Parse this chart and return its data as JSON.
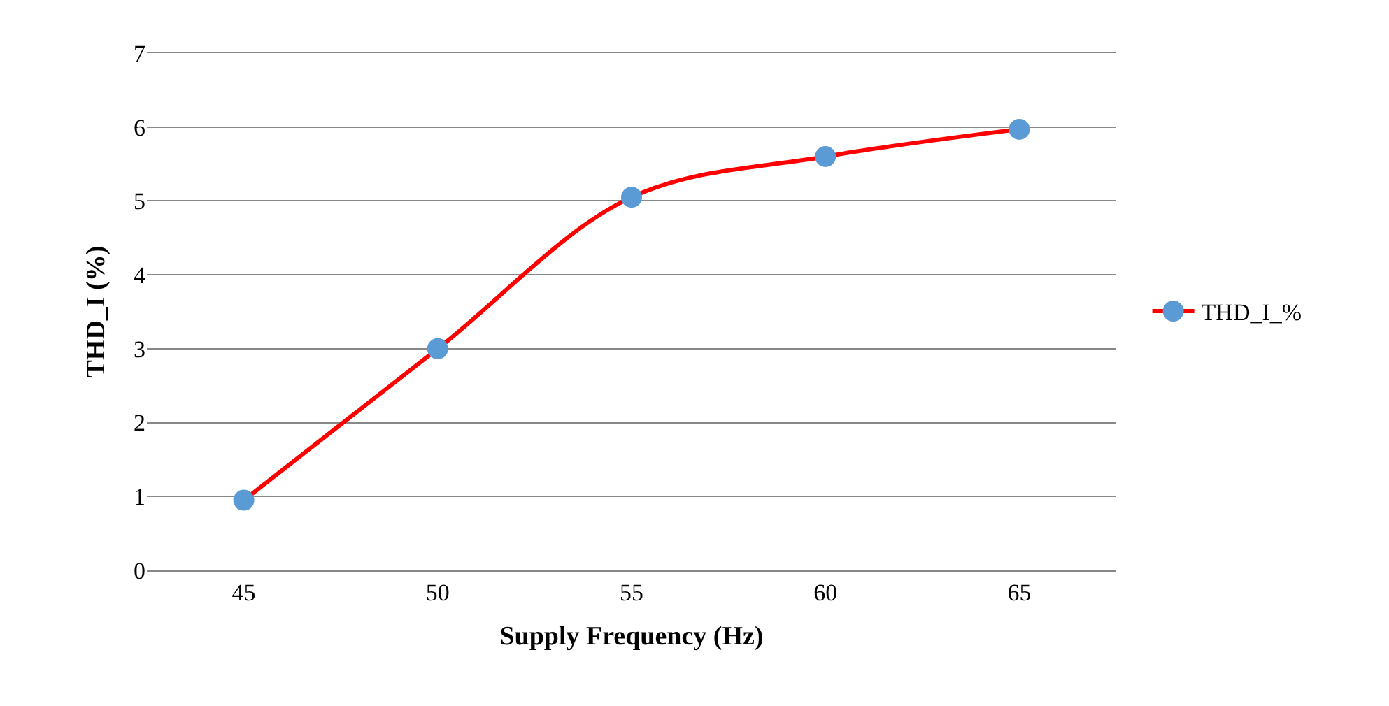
{
  "chart_data": {
    "type": "line",
    "xlabel": "Supply Frequency (Hz)",
    "ylabel": "THD_I (%)",
    "categories": [
      "45",
      "50",
      "55",
      "60",
      "65"
    ],
    "series": [
      {
        "name": "THD_I_%",
        "color": "#ff0000",
        "colors": [
          "#5b9bd5",
          "#5b9bd5",
          "#5b9bd5",
          "#5b9bd5",
          "#5b9bd5"
        ],
        "values": [
          0.95,
          3.0,
          5.05,
          5.6,
          5.97
        ]
      }
    ],
    "ylim": [
      0,
      7
    ],
    "yticks": [
      0,
      1,
      2,
      3,
      4,
      5,
      6,
      7
    ],
    "grid": "y",
    "legend": "right",
    "marker": "circle",
    "line_style": "solid"
  }
}
